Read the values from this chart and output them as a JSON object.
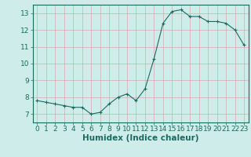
{
  "xlabel": "Humidex (Indice chaleur)",
  "x": [
    0,
    1,
    2,
    3,
    4,
    5,
    6,
    7,
    8,
    9,
    10,
    11,
    12,
    13,
    14,
    15,
    16,
    17,
    18,
    19,
    20,
    21,
    22,
    23
  ],
  "y": [
    7.8,
    7.7,
    7.6,
    7.5,
    7.4,
    7.4,
    7.0,
    7.1,
    7.6,
    8.0,
    8.2,
    7.8,
    8.5,
    10.3,
    12.4,
    13.1,
    13.2,
    12.8,
    12.8,
    12.5,
    12.5,
    12.4,
    12.0,
    11.1
  ],
  "ylim": [
    6.5,
    13.5
  ],
  "xlim": [
    -0.5,
    23.5
  ],
  "yticks": [
    7,
    8,
    9,
    10,
    11,
    12,
    13
  ],
  "xticks": [
    0,
    1,
    2,
    3,
    4,
    5,
    6,
    7,
    8,
    9,
    10,
    11,
    12,
    13,
    14,
    15,
    16,
    17,
    18,
    19,
    20,
    21,
    22,
    23
  ],
  "line_color": "#1a6b5e",
  "marker": "+",
  "bg_color": "#ceecea",
  "grid_color": "#d4aaaa",
  "axis_color": "#1a6b5e",
  "tick_label_color": "#1a6b5e",
  "xlabel_color": "#1a6b5e",
  "font_size_ticks": 6.5,
  "font_size_xlabel": 7.5
}
